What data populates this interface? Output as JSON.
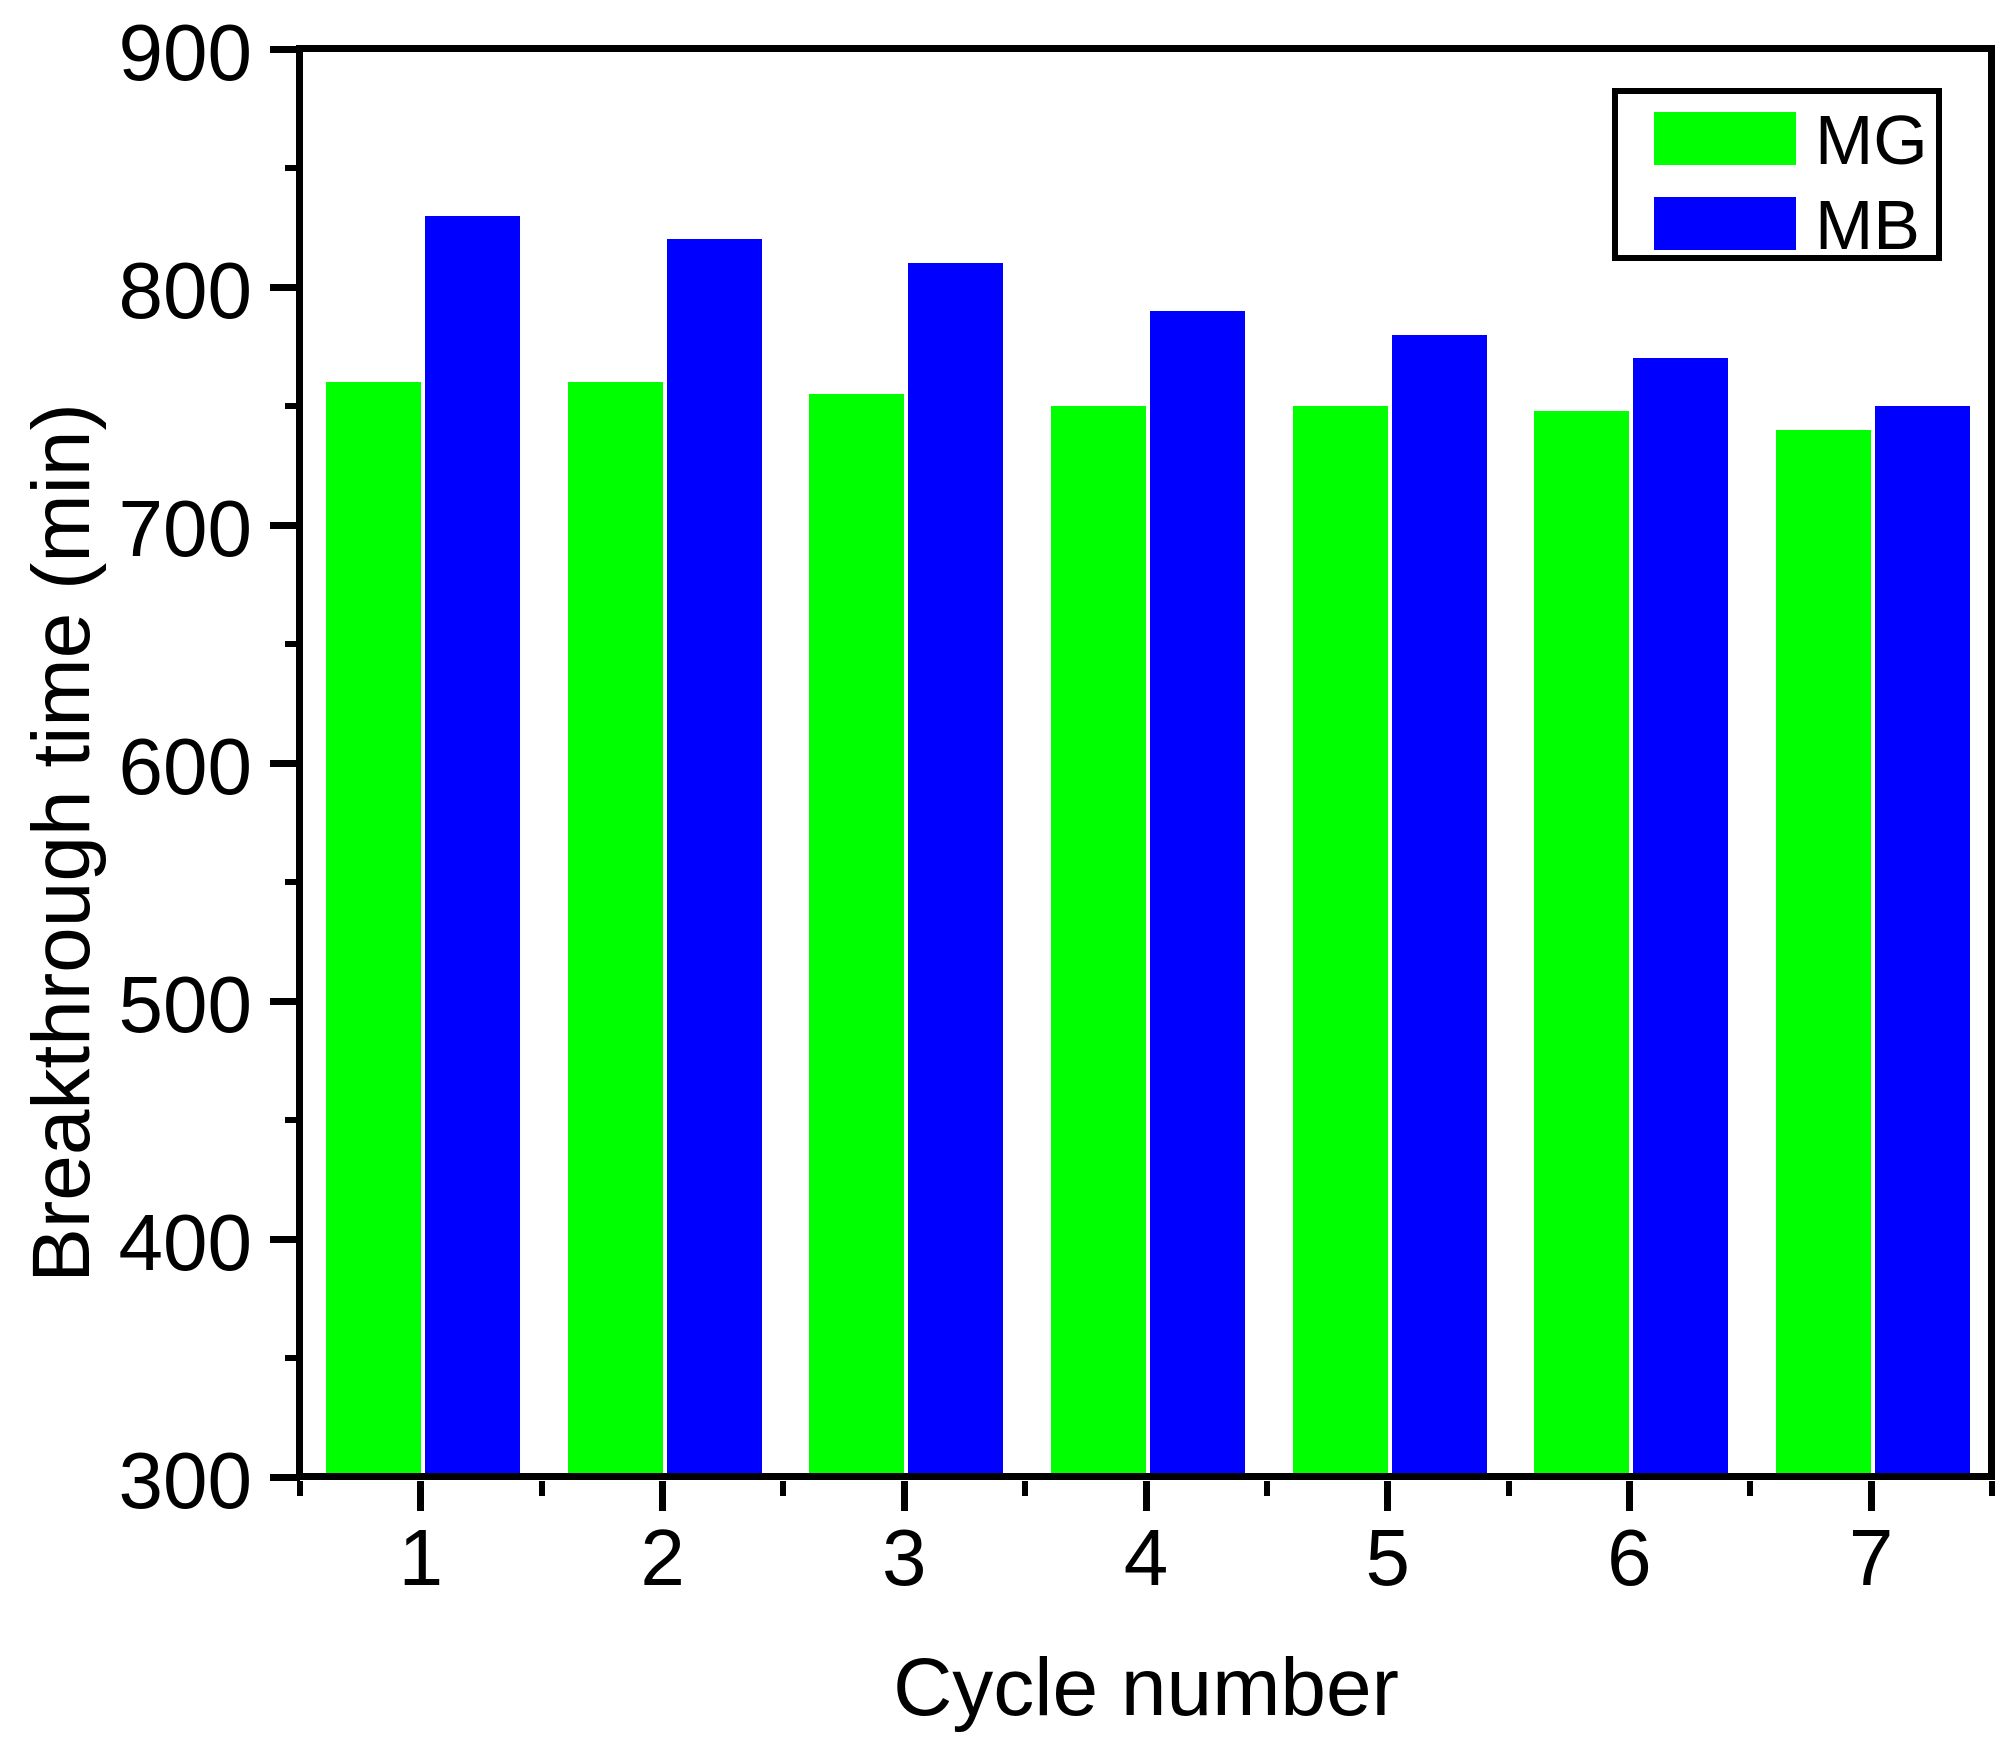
{
  "chart_data": {
    "type": "bar",
    "title": "",
    "categories": [
      "1",
      "2",
      "3",
      "4",
      "5",
      "6",
      "7"
    ],
    "series": [
      {
        "name": "MG",
        "color": "#00FF00",
        "values": [
          760,
          760,
          755,
          750,
          750,
          748,
          740
        ]
      },
      {
        "name": "MB",
        "color": "#0000FF",
        "values": [
          830,
          820,
          810,
          790,
          780,
          770,
          750
        ]
      }
    ],
    "xlabel": "Cycle number",
    "ylabel": "Breakthrough time (min)",
    "ylim": [
      300,
      900
    ],
    "yticks": [
      300,
      400,
      500,
      600,
      700,
      800,
      900
    ],
    "ytick_minor_step": 50,
    "grid": false,
    "legend_position": "top-right",
    "frame_color": "#000000",
    "background_color": "#ffffff"
  }
}
